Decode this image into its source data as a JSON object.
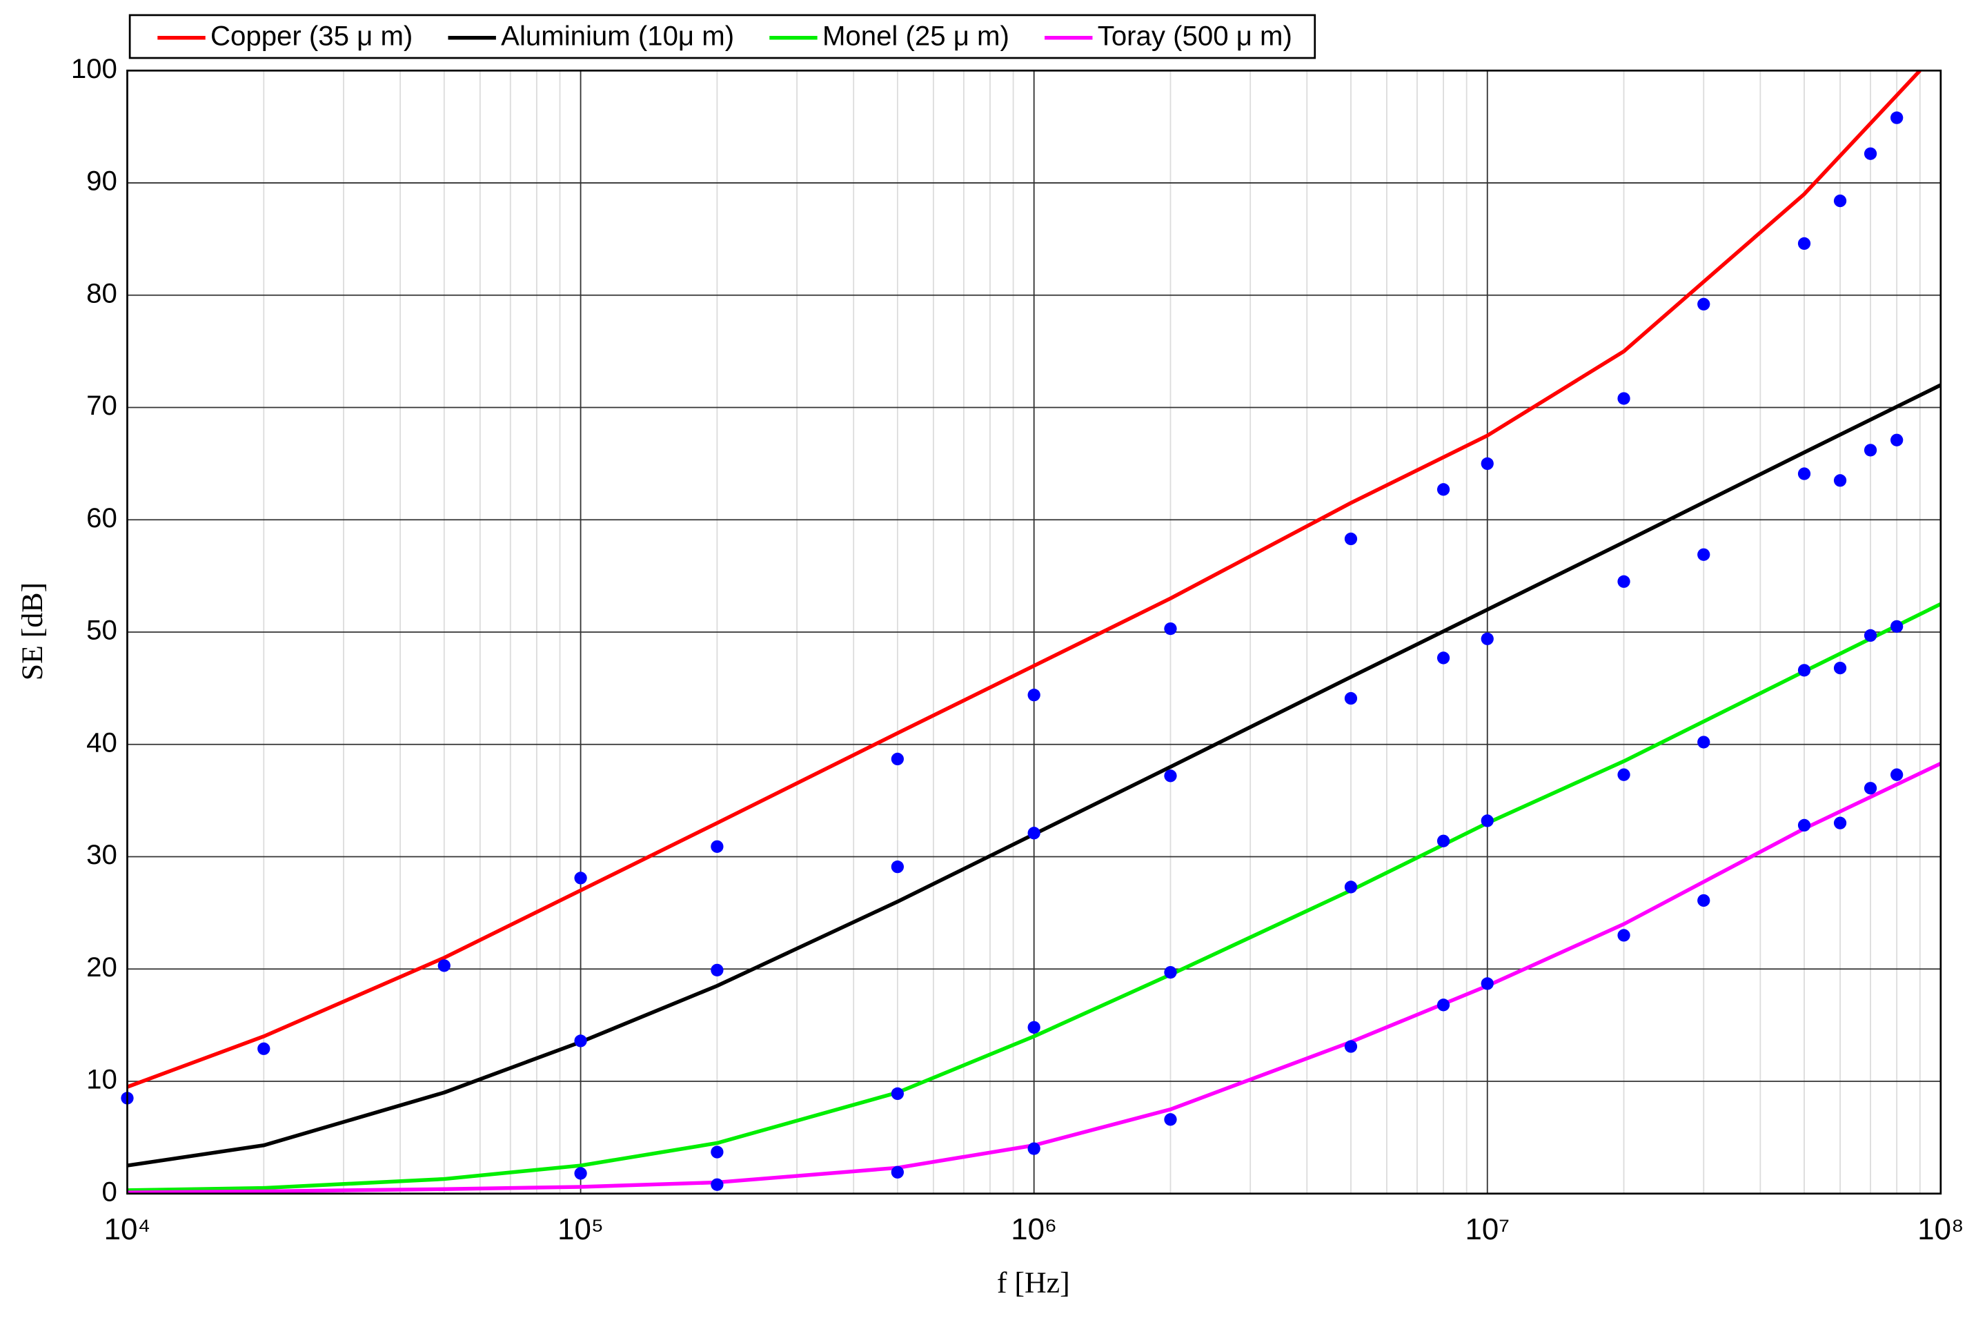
{
  "chart_data": {
    "type": "line",
    "x_label": "f [Hz]",
    "y_label": "SE [dB]",
    "xscale": "log",
    "xlim": [
      10000,
      100000000
    ],
    "ylim": [
      0,
      100
    ],
    "xticks": [
      {
        "value": 10000,
        "label": "10⁴"
      },
      {
        "value": 100000,
        "label": "10⁵"
      },
      {
        "value": 1000000,
        "label": "10⁶"
      },
      {
        "value": 10000000,
        "label": "10⁷"
      },
      {
        "value": 100000000,
        "label": "10⁸"
      }
    ],
    "yticks": [
      0,
      10,
      20,
      30,
      40,
      50,
      60,
      70,
      80,
      90,
      100
    ],
    "grid": true,
    "minor_grid": true,
    "legend": "top-left",
    "series": [
      {
        "name": "Copper (35 μ m)",
        "color": "#ff0000",
        "type": "line",
        "x": [
          10000,
          20000,
          50000,
          100000,
          200000,
          500000,
          1000000,
          2000000,
          5000000,
          10000000,
          20000000,
          50000000,
          90000000
        ],
        "values": [
          9.5,
          14,
          21,
          27,
          33,
          41,
          47,
          53,
          61.5,
          67.5,
          75,
          89,
          100
        ]
      },
      {
        "name": "Aluminium (10μ m)",
        "color": "#000000",
        "type": "line",
        "x": [
          10000,
          20000,
          50000,
          100000,
          200000,
          500000,
          1000000,
          2000000,
          5000000,
          10000000,
          20000000,
          50000000,
          100000000
        ],
        "values": [
          2.5,
          4.3,
          9,
          13.5,
          18.5,
          26,
          32,
          38,
          46,
          52,
          58,
          66,
          72
        ]
      },
      {
        "name": "Monel (25 μ m)",
        "color": "#00ee00",
        "type": "line",
        "x": [
          10000,
          20000,
          50000,
          100000,
          200000,
          500000,
          1000000,
          2000000,
          5000000,
          10000000,
          20000000,
          50000000,
          100000000
        ],
        "values": [
          0.3,
          0.5,
          1.3,
          2.5,
          4.5,
          9,
          14,
          19.5,
          27,
          33,
          38.5,
          46.5,
          52.5
        ]
      },
      {
        "name": "Toray (500 μ m)",
        "color": "#ff00ff",
        "type": "line",
        "x": [
          10000,
          20000,
          50000,
          100000,
          200000,
          500000,
          1000000,
          2000000,
          5000000,
          10000000,
          20000000,
          50000000,
          100000000
        ],
        "values": [
          0.1,
          0.2,
          0.4,
          0.6,
          1.0,
          2.3,
          4.3,
          7.5,
          13.5,
          18.5,
          24,
          32.5,
          38.3
        ]
      },
      {
        "color": "#0000ff",
        "type": "scatter",
        "x": [
          10000,
          20000,
          50000,
          100000,
          100000,
          100000,
          200000,
          200000,
          200000,
          200000,
          500000,
          500000,
          500000,
          500000,
          1000000,
          1000000,
          1000000,
          1000000,
          2000000,
          2000000,
          2000000,
          2000000,
          5000000,
          5000000,
          5000000,
          5000000,
          8000000,
          8000000,
          8000000,
          8000000,
          10000000,
          10000000,
          10000000,
          10000000,
          20000000,
          20000000,
          20000000,
          20000000,
          30000000,
          30000000,
          30000000,
          30000000,
          50000000,
          50000000,
          50000000,
          50000000,
          60000000,
          60000000,
          60000000,
          60000000,
          70000000,
          70000000,
          70000000,
          70000000,
          80000000,
          80000000,
          80000000,
          80000000
        ],
        "values": [
          8.5,
          12.9,
          20.3,
          28.1,
          13.6,
          1.8,
          30.9,
          19.9,
          3.7,
          0.8,
          38.7,
          29.1,
          8.9,
          1.9,
          44.4,
          32.1,
          14.8,
          4.0,
          50.3,
          37.2,
          19.7,
          6.6,
          58.3,
          44.1,
          27.3,
          13.1,
          62.7,
          47.7,
          31.4,
          16.8,
          65,
          49.4,
          33.2,
          18.7,
          70.8,
          54.5,
          37.3,
          23,
          79.2,
          56.9,
          40.2,
          26.1,
          84.6,
          64.1,
          46.6,
          32.8,
          88.4,
          63.5,
          46.8,
          33,
          92.6,
          66.2,
          49.7,
          36.1,
          95.8,
          67.1,
          50.5,
          37.3
        ]
      }
    ]
  }
}
